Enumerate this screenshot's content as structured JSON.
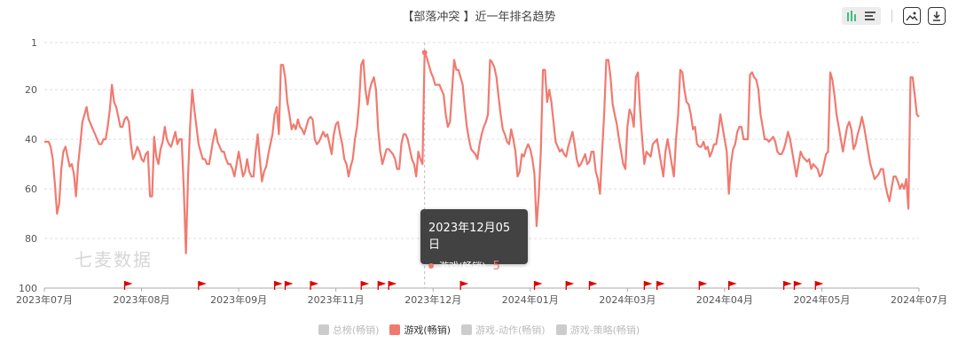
{
  "title": "【部落冲突 】近一年排名趋势",
  "watermark": "七麦数据",
  "toolbar": {
    "icons": [
      "bar-chart-icon",
      "list-icon",
      "save-image-icon",
      "download-icon"
    ]
  },
  "tooltip": {
    "date": "2023年12月05日",
    "series": "游戏(畅销)",
    "value": "5",
    "color": "#f07a70"
  },
  "legend": [
    {
      "label": "总榜(畅销)",
      "active": false,
      "color": "#cccccc"
    },
    {
      "label": "游戏(畅销)",
      "active": true,
      "color": "#f07a70"
    },
    {
      "label": "游戏-动作(畅销)",
      "active": false,
      "color": "#cccccc"
    },
    {
      "label": "游戏-策略(畅销)",
      "active": false,
      "color": "#cccccc"
    }
  ],
  "chart_data": {
    "type": "line",
    "title": "【部落冲突 】近一年排名趋势",
    "x_tick_labels": [
      "2023年07月",
      "2023年08月",
      "2023年09月",
      "2023年11月",
      "2023年12月",
      "2024年01月",
      "2024年03月",
      "2024年04月",
      "2024年05月",
      "2024年07月"
    ],
    "y_ticks": [
      1,
      20,
      40,
      60,
      80,
      100
    ],
    "ylim": [
      1,
      100
    ],
    "y_inverted": true,
    "grid": true,
    "series": [
      {
        "name": "游戏(畅销)",
        "color": "#f07a70",
        "values": [
          41,
          41,
          41,
          43,
          48,
          58,
          70,
          66,
          52,
          45,
          43,
          47,
          51,
          50,
          54,
          63,
          50,
          42,
          33,
          30,
          27,
          32,
          34,
          36,
          38,
          40,
          42,
          42,
          40,
          40,
          35,
          28,
          18,
          25,
          27,
          31,
          35,
          35,
          32,
          31,
          33,
          42,
          48,
          46,
          43,
          45,
          48,
          49,
          46,
          45,
          63,
          63,
          39,
          47,
          50,
          44,
          41,
          35,
          40,
          42,
          43,
          40,
          37,
          42,
          40,
          40,
          60,
          86,
          55,
          35,
          20,
          28,
          35,
          42,
          45,
          48,
          48,
          50,
          50,
          45,
          40,
          36,
          41,
          43,
          45,
          45,
          48,
          50,
          50,
          52,
          55,
          50,
          45,
          50,
          55,
          53,
          48,
          53,
          55,
          55,
          45,
          38,
          48,
          57,
          53,
          51,
          46,
          42,
          38,
          30,
          27,
          38,
          10,
          10,
          15,
          25,
          30,
          36,
          34,
          36,
          32,
          35,
          36,
          38,
          35,
          32,
          31,
          32,
          40,
          42,
          41,
          39,
          37,
          39,
          38,
          42,
          46,
          38,
          34,
          33,
          38,
          42,
          48,
          50,
          55,
          51,
          48,
          40,
          35,
          25,
          10,
          8,
          20,
          26,
          20,
          17,
          15,
          20,
          36,
          45,
          50,
          47,
          44,
          44,
          45,
          46,
          48,
          52,
          52,
          42,
          38,
          38,
          40,
          44,
          48,
          50,
          55,
          45,
          48,
          50,
          5,
          7,
          10,
          13,
          15,
          18,
          18,
          18,
          20,
          22,
          30,
          35,
          33,
          20,
          8,
          12,
          12,
          15,
          18,
          27,
          35,
          40,
          44,
          45,
          46,
          48,
          42,
          38,
          35,
          33,
          30,
          8,
          9,
          11,
          15,
          23,
          30,
          36,
          38,
          41,
          42,
          36,
          40,
          45,
          55,
          53,
          46,
          47,
          44,
          42,
          44,
          48,
          54,
          75,
          63,
          45,
          12,
          12,
          25,
          20,
          25,
          33,
          41,
          43,
          45,
          44,
          46,
          47,
          43,
          40,
          37,
          42,
          48,
          51,
          50,
          48,
          46,
          50,
          49,
          45,
          45,
          53,
          56,
          62,
          45,
          30,
          8,
          8,
          15,
          26,
          30,
          34,
          40,
          45,
          50,
          52,
          35,
          28,
          30,
          35,
          15,
          13,
          28,
          40,
          50,
          45,
          46,
          47,
          42,
          41,
          40,
          45,
          50,
          55,
          45,
          40,
          45,
          50,
          55,
          40,
          30,
          12,
          13,
          20,
          25,
          26,
          30,
          36,
          35,
          42,
          43,
          43,
          41,
          44,
          43,
          47,
          45,
          42,
          42,
          37,
          30,
          35,
          40,
          45,
          62,
          50,
          44,
          42,
          37,
          35,
          35,
          40,
          40,
          40,
          14,
          13,
          15,
          16,
          20,
          30,
          35,
          40,
          40,
          41,
          40,
          39,
          41,
          45,
          46,
          46,
          44,
          41,
          37,
          40,
          45,
          50,
          55,
          50,
          45,
          47,
          48,
          49,
          48,
          52,
          50,
          51,
          52,
          55,
          54,
          50,
          46,
          45,
          13,
          16,
          22,
          30,
          35,
          40,
          45,
          40,
          35,
          33,
          36,
          44,
          42,
          38,
          35,
          31,
          35,
          40,
          45,
          50,
          53,
          56,
          55,
          54,
          52,
          52,
          58,
          62,
          65,
          60,
          55,
          55,
          57,
          60,
          58,
          60,
          56,
          68,
          15,
          15,
          22,
          30,
          31
        ],
        "flags_index": [
          38,
          73,
          109,
          114,
          126,
          150,
          158,
          163,
          197,
          232,
          247,
          258,
          284,
          290,
          310,
          324,
          350,
          355,
          365
        ]
      }
    ]
  }
}
